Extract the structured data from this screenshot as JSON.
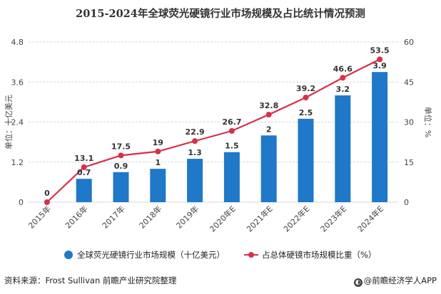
{
  "title": "2015-2024年全球荧光硬镜行业市场规模及占比统计情况预测",
  "colors": {
    "bar": "#1f78c8",
    "line": "#d6314a",
    "grid": "#d9d9d9",
    "axis_text": "#444444"
  },
  "chart_data": {
    "type": "bar",
    "categories": [
      "2015年",
      "2016年",
      "2017年",
      "2018年",
      "2019年",
      "2020年E",
      "2021年E",
      "2022年E",
      "2023年E",
      "2024年E"
    ],
    "ylabel": "单位：十亿美元",
    "ylabel_right": "单位：%",
    "ylim": [
      0,
      4.8
    ],
    "yticks": [
      "0",
      "1.2",
      "2.4",
      "3.6",
      "4.8"
    ],
    "ylim_right": [
      0,
      60
    ],
    "yticks_right": [
      "0",
      "15",
      "30",
      "45",
      "60"
    ],
    "grid": true,
    "legend_position": "bottom",
    "series": [
      {
        "name": "全球荧光硬镜行业市场规模（十亿美元）",
        "type": "bar",
        "axis": "left",
        "values": [
          0,
          0.7,
          0.9,
          1,
          1.3,
          1.5,
          2,
          2.5,
          3.2,
          3.9
        ],
        "labels": [
          "",
          "0.7",
          "0.9",
          "1",
          "1.3",
          "1.5",
          "2",
          "2.5",
          "3.2",
          "3.9"
        ]
      },
      {
        "name": "占总体硬镜市场规模比重（%）",
        "type": "line",
        "axis": "right",
        "values": [
          0,
          13.1,
          17.5,
          19,
          22.9,
          26.7,
          32.8,
          39.2,
          46.6,
          53.5
        ],
        "labels": [
          "0",
          "13.1",
          "17.5",
          "19",
          "22.9",
          "26.7",
          "32.8",
          "39.2",
          "46.6",
          "53.5"
        ]
      }
    ]
  },
  "footer": {
    "source_label": "资料来源：",
    "source_value": "Frost Sullivan 前瞻产业研究院整理"
  },
  "brand": "@前瞻经济学人APP"
}
